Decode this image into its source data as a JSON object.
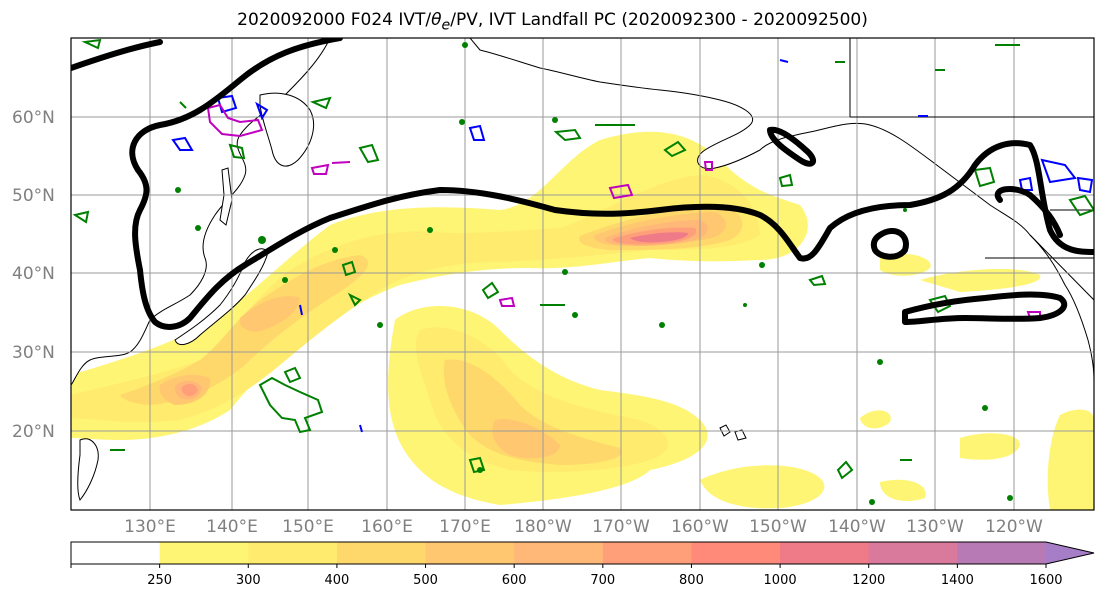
{
  "title": {
    "run": "2020092000",
    "forecast_hour": "F024",
    "fields_prefix": "IVT/",
    "theta": "θ",
    "theta_sub": "e",
    "fields_suffix": "/PV, IVT Landfall PC (2020092300 - 2020092500)"
  },
  "lat_labels": [
    "60°N",
    "50°N",
    "40°N",
    "30°N",
    "20°N"
  ],
  "lon_labels": [
    "130°E",
    "140°E",
    "150°E",
    "160°E",
    "170°E",
    "180°W",
    "170°W",
    "160°W",
    "150°W",
    "140°W",
    "130°W",
    "120°W"
  ],
  "colorbar": {
    "ticks": [
      "250",
      "300",
      "400",
      "500",
      "600",
      "700",
      "800",
      "1000",
      "1200",
      "1400",
      "1600"
    ],
    "colors": [
      "#ffffff",
      "#fff575",
      "#ffeb6e",
      "#ffd86b",
      "#ffc870",
      "#ffb878",
      "#ff9f7a",
      "#ff8a7a",
      "#ef7a88",
      "#d97a9c",
      "#b77ab4",
      "#a57ec7"
    ],
    "extend": "max"
  },
  "legend_colors": {
    "ivt_contour": "#000000",
    "pv_contour": "#008000",
    "theta_contour_blue": "#0000ff",
    "theta_contour_magenta": "#c000c0",
    "coastline": "#000000",
    "gridline": "#9a9a9a"
  }
}
